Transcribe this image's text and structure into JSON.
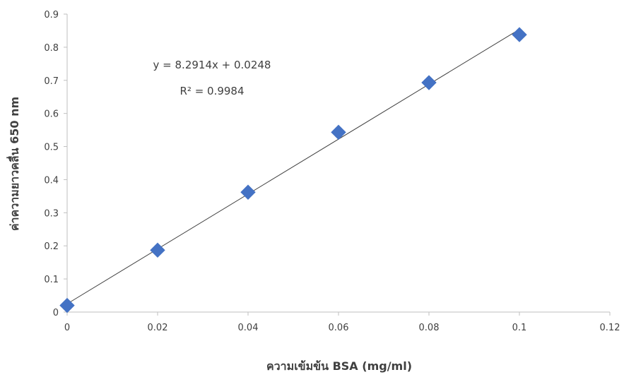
{
  "chart_data": {
    "type": "scatter",
    "title": "",
    "xlabel": "ความเข้มข้น BSA (mg/ml)",
    "ylabel": "ค่าความยาวคลื่น 650 nm",
    "xlim": [
      0,
      0.12
    ],
    "ylim": [
      0,
      0.9
    ],
    "x_ticks": [
      0,
      0.02,
      0.04,
      0.06,
      0.08,
      0.1,
      0.12
    ],
    "x_tick_labels": [
      "0",
      "0.02",
      "0.04",
      "0.06",
      "0.08",
      "0.1",
      "0.12"
    ],
    "y_ticks": [
      0,
      0.1,
      0.2,
      0.3,
      0.4,
      0.5,
      0.6,
      0.7,
      0.8,
      0.9
    ],
    "y_tick_labels": [
      "0",
      "0.1",
      "0.2",
      "0.3",
      "0.4",
      "0.5",
      "0.6",
      "0.7",
      "0.8",
      "0.9"
    ],
    "grid": false,
    "legend": "none",
    "marker": "diamond",
    "marker_color": "#4472C4",
    "series": [
      {
        "x": [
          0,
          0.02,
          0.04,
          0.06,
          0.08,
          0.1
        ],
        "y": [
          0.02,
          0.187,
          0.362,
          0.543,
          0.693,
          0.838
        ]
      }
    ],
    "trendline": {
      "type": "linear",
      "slope": 8.2914,
      "intercept": 0.0248,
      "x_range": [
        0,
        0.1
      ],
      "color": "#404040"
    },
    "annotations": {
      "equation": "y = 8.2914x + 0.0248",
      "r_squared": "R² = 0.9984"
    }
  }
}
